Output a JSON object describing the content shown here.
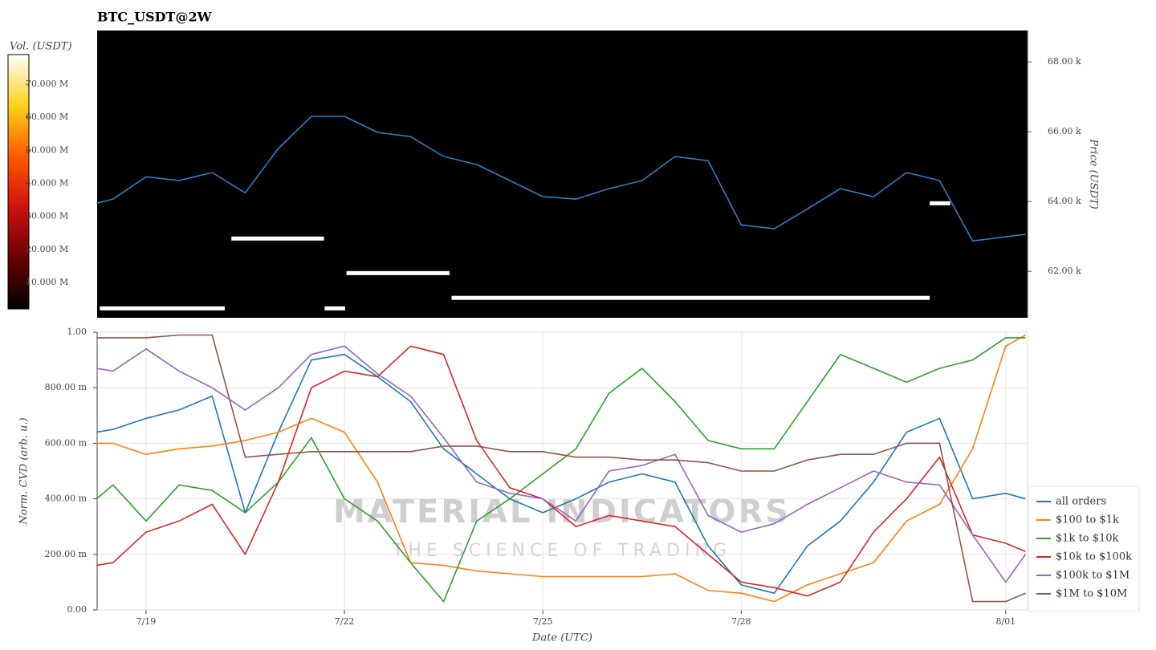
{
  "chart_data": [
    {
      "type": "line",
      "title": "BTC_USDT@2W",
      "background": "#000000",
      "yaxis_side": "right",
      "ylabel": "Price (USDT)",
      "x": [
        18.25,
        18.5,
        19,
        19.5,
        20,
        20.5,
        21,
        21.5,
        22,
        22.5,
        23,
        23.5,
        24,
        24.5,
        25,
        25.5,
        26,
        26.5,
        27,
        27.5,
        28,
        28.5,
        29,
        29.5,
        30,
        30.5,
        31,
        31.5,
        32,
        32.3
      ],
      "xlim": [
        18.26,
        32.33
      ],
      "ylim": [
        60670,
        68900
      ],
      "yticks": [
        {
          "value": 62000,
          "label": "62.00 k"
        },
        {
          "value": 64000,
          "label": "64.00 k"
        },
        {
          "value": 66000,
          "label": "66.00 k"
        },
        {
          "value": 68000,
          "label": "68.00 k"
        }
      ],
      "series": [
        {
          "color": "#2f7fc1",
          "values": [
            63950,
            64070,
            64710,
            64600,
            64830,
            64250,
            65520,
            66440,
            66440,
            65980,
            65860,
            65290,
            65060,
            64600,
            64140,
            64070,
            64370,
            64600,
            65290,
            65170,
            63330,
            63220,
            63790,
            64370,
            64140,
            64830,
            64600,
            62870,
            62990,
            63060
          ]
        }
      ],
      "segments": {
        "color": "#ffffff",
        "items": [
          {
            "x": [
              18.3,
              20.19
            ],
            "y": 60940
          },
          {
            "x": [
              20.29,
              21.69
            ],
            "y": 62940
          },
          {
            "x": [
              21.7,
              22.01
            ],
            "y": 60940
          },
          {
            "x": [
              22.03,
              23.59
            ],
            "y": 61950
          },
          {
            "x": [
              23.62,
              30.85
            ],
            "y": 61240
          },
          {
            "x": [
              30.85,
              31.16
            ],
            "y": 63950
          }
        ]
      },
      "colorbar": {
        "label": "Vol. (USDT)",
        "lim": [
          2000000,
          79000000
        ],
        "colors": [
          "#000000",
          "#6a0000",
          "#d01010",
          "#ff5a00",
          "#ffd21a",
          "#ffffff"
        ],
        "ticks": [
          {
            "value": 10000000,
            "label": "10.000 M"
          },
          {
            "value": 20000000,
            "label": "20.000 M"
          },
          {
            "value": 30000000,
            "label": "30.000 M"
          },
          {
            "value": 40000000,
            "label": "40.000 M"
          },
          {
            "value": 50000000,
            "label": "50.000 M"
          },
          {
            "value": 60000000,
            "label": "60.000 M"
          },
          {
            "value": 70000000,
            "label": "70.000 M"
          }
        ]
      }
    },
    {
      "type": "line",
      "background": "#ffffff",
      "yaxis_side": "left",
      "grid": true,
      "legend": "right",
      "xlabel": "Date (UTC)",
      "ylabel": "Norm. CVD (arb. u.)",
      "watermark": [
        "MATERIAL INDICATORS",
        "THE SCIENCE OF TRADING"
      ],
      "x": [
        18.25,
        18.5,
        19,
        19.5,
        20,
        20.5,
        21,
        21.5,
        22,
        22.5,
        23,
        23.5,
        24,
        24.5,
        25,
        25.5,
        26,
        26.5,
        27,
        27.5,
        28,
        28.5,
        29,
        29.5,
        30,
        30.5,
        31,
        31.5,
        32,
        32.3
      ],
      "xlim": [
        18.26,
        32.33
      ],
      "xticks": [
        {
          "value": 19,
          "label": "7/19"
        },
        {
          "value": 22,
          "label": "7/22"
        },
        {
          "value": 25,
          "label": "7/25"
        },
        {
          "value": 28,
          "label": "7/28"
        },
        {
          "value": 32,
          "label": "8/01"
        }
      ],
      "ylim": [
        0,
        1
      ],
      "yticks": [
        {
          "value": 0,
          "label": "0.00"
        },
        {
          "value": 0.2,
          "label": "200.00 m"
        },
        {
          "value": 0.4,
          "label": "400.00 m"
        },
        {
          "value": 0.6,
          "label": "600.00 m"
        },
        {
          "value": 0.8,
          "label": "800.00 m"
        },
        {
          "value": 1,
          "label": "1.00"
        }
      ],
      "series": [
        {
          "name": "all orders",
          "color": "#1f77b4",
          "values": [
            0.64,
            0.65,
            0.69,
            0.72,
            0.77,
            0.35,
            0.64,
            0.9,
            0.92,
            0.84,
            0.75,
            0.58,
            0.49,
            0.4,
            0.35,
            0.4,
            0.46,
            0.49,
            0.46,
            0.23,
            0.09,
            0.06,
            0.23,
            0.32,
            0.46,
            0.64,
            0.69,
            0.4,
            0.42,
            0.4
          ]
        },
        {
          "name": "$100 to $1k",
          "color": "#ff7f0e",
          "values": [
            0.6,
            0.6,
            0.56,
            0.58,
            0.59,
            0.61,
            0.64,
            0.69,
            0.64,
            0.46,
            0.17,
            0.16,
            0.14,
            0.13,
            0.12,
            0.12,
            0.12,
            0.12,
            0.13,
            0.07,
            0.06,
            0.03,
            0.09,
            0.13,
            0.17,
            0.32,
            0.38,
            0.58,
            0.95,
            0.99
          ]
        },
        {
          "name": "$1k to $10k",
          "color": "#2ca02c",
          "values": [
            0.4,
            0.45,
            0.32,
            0.45,
            0.43,
            0.35,
            0.46,
            0.62,
            0.4,
            0.32,
            0.17,
            0.03,
            0.32,
            0.4,
            0.49,
            0.58,
            0.78,
            0.87,
            0.75,
            0.61,
            0.58,
            0.58,
            0.75,
            0.92,
            0.87,
            0.82,
            0.87,
            0.9,
            0.98,
            0.98
          ]
        },
        {
          "name": "$10k to $100k",
          "color": "#d62728",
          "values": [
            0.16,
            0.17,
            0.28,
            0.32,
            0.38,
            0.2,
            0.46,
            0.8,
            0.86,
            0.84,
            0.95,
            0.92,
            0.61,
            0.44,
            0.4,
            0.3,
            0.34,
            0.32,
            0.3,
            0.2,
            0.1,
            0.08,
            0.05,
            0.1,
            0.28,
            0.4,
            0.55,
            0.27,
            0.24,
            0.21
          ]
        },
        {
          "name": "$100k to $1M",
          "color": "#9467bd",
          "values": [
            0.87,
            0.86,
            0.94,
            0.86,
            0.8,
            0.72,
            0.8,
            0.92,
            0.95,
            0.85,
            0.77,
            0.62,
            0.46,
            0.42,
            0.4,
            0.32,
            0.5,
            0.52,
            0.56,
            0.34,
            0.28,
            0.31,
            0.38,
            0.44,
            0.5,
            0.46,
            0.45,
            0.27,
            0.1,
            0.2
          ]
        },
        {
          "name": "$1M to $10M",
          "color": "#8c564b",
          "values": [
            0.98,
            0.98,
            0.98,
            0.99,
            0.99,
            0.55,
            0.56,
            0.57,
            0.57,
            0.57,
            0.57,
            0.59,
            0.59,
            0.57,
            0.57,
            0.55,
            0.55,
            0.54,
            0.54,
            0.53,
            0.5,
            0.5,
            0.54,
            0.56,
            0.56,
            0.6,
            0.6,
            0.03,
            0.03,
            0.06
          ]
        }
      ]
    }
  ]
}
